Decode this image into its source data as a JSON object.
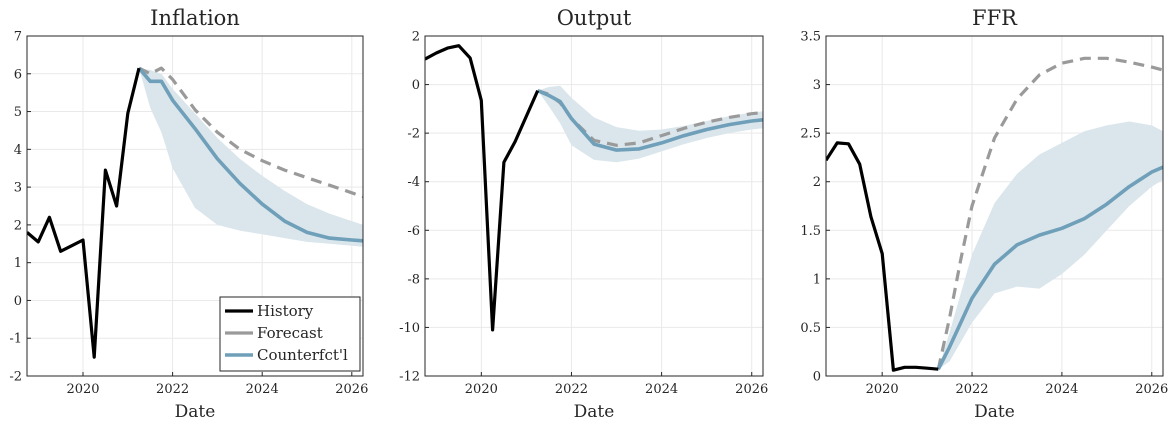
{
  "colors": {
    "history": "#000000",
    "forecast": "#9a9a9a",
    "counterfactual": "#6f9fb9",
    "band": "#dae6ec",
    "grid": "#e9e9e9",
    "axis": "#262626"
  },
  "legend": {
    "placement": "bottom-right of first panel",
    "entries": [
      "History",
      "Forecast",
      "Counterfct'l"
    ]
  },
  "chart_data": [
    {
      "type": "line",
      "title": "Inflation",
      "xlabel": "Date",
      "ylabel": "",
      "xlim": [
        2018.75,
        2026.25
      ],
      "ylim": [
        -2,
        7
      ],
      "xticks": [
        2020,
        2022,
        2024,
        2026
      ],
      "xtick_labels": [
        "2020",
        "2022",
        "2024",
        "2026"
      ],
      "yticks": [
        -2,
        -1,
        0,
        1,
        2,
        3,
        4,
        5,
        6,
        7
      ],
      "ytick_labels": [
        "-2",
        "-1",
        "0",
        "1",
        "2",
        "3",
        "4",
        "5",
        "6",
        "7"
      ],
      "grid": true,
      "series": [
        {
          "name": "History",
          "style": "solid",
          "x": [
            2018.75,
            2019.0,
            2019.25,
            2019.5,
            2019.75,
            2020.0,
            2020.25,
            2020.5,
            2020.75,
            2021.0,
            2021.25
          ],
          "y": [
            1.8,
            1.55,
            2.2,
            1.3,
            1.45,
            1.6,
            -1.5,
            3.45,
            2.5,
            4.95,
            6.15
          ]
        },
        {
          "name": "Forecast",
          "style": "dashed",
          "x": [
            2021.25,
            2021.5,
            2021.75,
            2022.0,
            2022.5,
            2023.0,
            2023.5,
            2024.0,
            2024.5,
            2025.0,
            2025.5,
            2026.0,
            2026.25
          ],
          "y": [
            6.15,
            6.0,
            6.15,
            5.85,
            5.05,
            4.45,
            4.0,
            3.7,
            3.45,
            3.25,
            3.05,
            2.85,
            2.75
          ]
        },
        {
          "name": "Counterfct'l",
          "style": "solid",
          "x": [
            2021.25,
            2021.5,
            2021.75,
            2022.0,
            2022.5,
            2023.0,
            2023.5,
            2024.0,
            2024.5,
            2025.0,
            2025.5,
            2026.0,
            2026.25
          ],
          "y": [
            6.15,
            5.8,
            5.8,
            5.3,
            4.55,
            3.75,
            3.1,
            2.55,
            2.1,
            1.8,
            1.65,
            1.6,
            1.58
          ],
          "band_lower": [
            6.15,
            5.1,
            4.45,
            3.5,
            2.45,
            2.0,
            1.85,
            1.75,
            1.65,
            1.55,
            1.5,
            1.45,
            1.42
          ],
          "band_upper": [
            6.15,
            6.1,
            6.0,
            5.6,
            4.95,
            4.3,
            3.75,
            3.3,
            2.9,
            2.55,
            2.3,
            2.1,
            2.0
          ]
        }
      ]
    },
    {
      "type": "line",
      "title": "Output",
      "xlabel": "Date",
      "ylabel": "",
      "xlim": [
        2018.75,
        2026.25
      ],
      "ylim": [
        -12,
        2
      ],
      "xticks": [
        2020,
        2022,
        2024,
        2026
      ],
      "xtick_labels": [
        "2020",
        "2022",
        "2024",
        "2026"
      ],
      "yticks": [
        -12,
        -10,
        -8,
        -6,
        -4,
        -2,
        0,
        2
      ],
      "ytick_labels": [
        "-12",
        "-10",
        "-8",
        "-6",
        "-4",
        "-2",
        "0",
        "2"
      ],
      "grid": true,
      "series": [
        {
          "name": "History",
          "style": "solid",
          "x": [
            2018.75,
            2019.0,
            2019.25,
            2019.5,
            2019.75,
            2020.0,
            2020.25,
            2020.5,
            2020.75,
            2021.0,
            2021.25
          ],
          "y": [
            1.05,
            1.3,
            1.5,
            1.6,
            1.1,
            -0.65,
            -10.1,
            -3.2,
            -2.35,
            -1.3,
            -0.25
          ]
        },
        {
          "name": "Forecast",
          "style": "dashed",
          "x": [
            2021.25,
            2021.5,
            2021.75,
            2022.0,
            2022.5,
            2023.0,
            2023.5,
            2024.0,
            2024.5,
            2025.0,
            2025.5,
            2026.0,
            2026.25
          ],
          "y": [
            -0.25,
            -0.4,
            -0.75,
            -1.4,
            -2.3,
            -2.5,
            -2.4,
            -2.1,
            -1.8,
            -1.55,
            -1.35,
            -1.2,
            -1.15
          ]
        },
        {
          "name": "Counterfct'l",
          "style": "solid",
          "x": [
            2021.25,
            2021.5,
            2021.75,
            2022.0,
            2022.5,
            2023.0,
            2023.5,
            2024.0,
            2024.5,
            2025.0,
            2025.5,
            2026.0,
            2026.25
          ],
          "y": [
            -0.25,
            -0.45,
            -0.7,
            -1.4,
            -2.45,
            -2.7,
            -2.65,
            -2.4,
            -2.1,
            -1.85,
            -1.65,
            -1.5,
            -1.45
          ],
          "band_lower": [
            -0.25,
            -0.9,
            -1.6,
            -2.5,
            -3.1,
            -3.2,
            -3.05,
            -2.75,
            -2.45,
            -2.2,
            -2.0,
            -1.85,
            -1.8
          ],
          "band_upper": [
            -0.25,
            -0.1,
            -0.05,
            -0.55,
            -1.35,
            -1.75,
            -1.9,
            -1.85,
            -1.7,
            -1.5,
            -1.3,
            -1.15,
            -1.1
          ]
        }
      ]
    },
    {
      "type": "line",
      "title": "FFR",
      "xlabel": "Date",
      "ylabel": "",
      "xlim": [
        2018.75,
        2026.25
      ],
      "ylim": [
        0,
        3.5
      ],
      "xticks": [
        2020,
        2022,
        2024,
        2026
      ],
      "xtick_labels": [
        "2020",
        "2022",
        "2024",
        "2026"
      ],
      "yticks": [
        0,
        0.5,
        1,
        1.5,
        2,
        2.5,
        3,
        3.5
      ],
      "ytick_labels": [
        "0",
        "0.5",
        "1",
        "1.5",
        "2",
        "2.5",
        "3",
        "3.5"
      ],
      "grid": true,
      "series": [
        {
          "name": "History",
          "style": "solid",
          "x": [
            2018.75,
            2019.0,
            2019.25,
            2019.5,
            2019.75,
            2020.0,
            2020.25,
            2020.5,
            2020.75,
            2021.0,
            2021.25
          ],
          "y": [
            2.22,
            2.4,
            2.39,
            2.18,
            1.64,
            1.26,
            0.06,
            0.09,
            0.09,
            0.08,
            0.07
          ]
        },
        {
          "name": "Forecast",
          "style": "dashed",
          "x": [
            2021.25,
            2021.5,
            2021.75,
            2022.0,
            2022.5,
            2023.0,
            2023.5,
            2024.0,
            2024.5,
            2025.0,
            2025.5,
            2026.0,
            2026.25
          ],
          "y": [
            0.07,
            0.6,
            1.2,
            1.75,
            2.45,
            2.85,
            3.1,
            3.22,
            3.27,
            3.27,
            3.23,
            3.18,
            3.15
          ]
        },
        {
          "name": "Counterfct'l",
          "style": "solid",
          "x": [
            2021.25,
            2021.5,
            2021.75,
            2022.0,
            2022.5,
            2023.0,
            2023.5,
            2024.0,
            2024.5,
            2025.0,
            2025.5,
            2026.0,
            2026.25
          ],
          "y": [
            0.07,
            0.3,
            0.55,
            0.8,
            1.15,
            1.35,
            1.45,
            1.52,
            1.62,
            1.77,
            1.95,
            2.1,
            2.15
          ],
          "band_lower": [
            0.07,
            0.15,
            0.35,
            0.55,
            0.85,
            0.92,
            0.9,
            1.05,
            1.25,
            1.5,
            1.75,
            1.95,
            2.02
          ],
          "band_upper": [
            0.07,
            0.45,
            0.85,
            1.25,
            1.78,
            2.08,
            2.28,
            2.4,
            2.52,
            2.58,
            2.62,
            2.58,
            2.52
          ]
        }
      ]
    }
  ]
}
